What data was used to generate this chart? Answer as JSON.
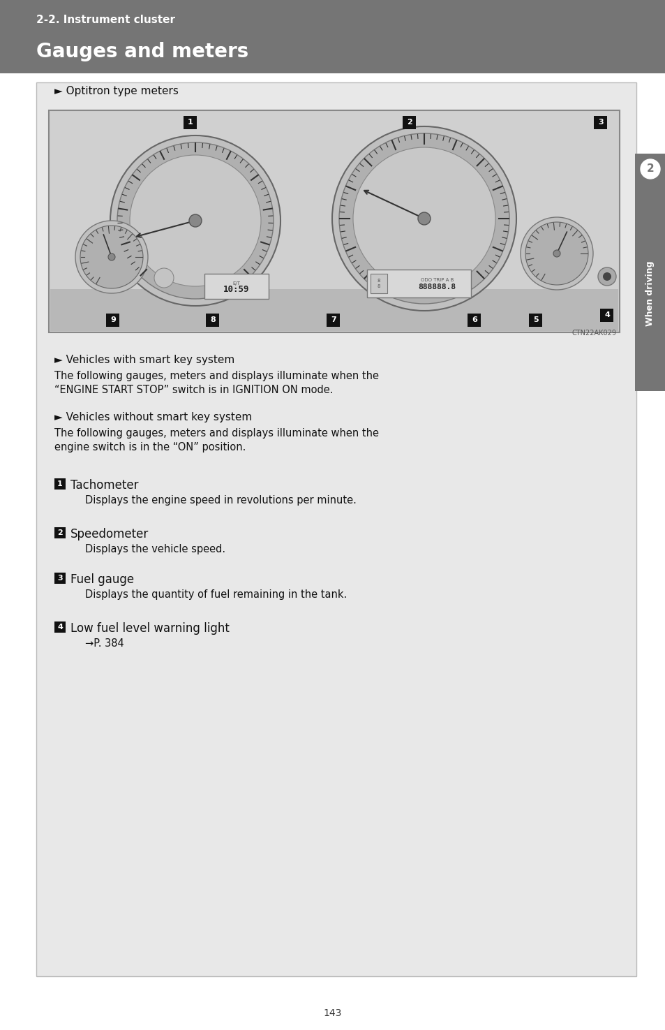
{
  "page_bg": "#ffffff",
  "header_bg": "#757575",
  "header_subtitle": "2-2. Instrument cluster",
  "header_title": "Gauges and meters",
  "header_subtitle_color": "#ffffff",
  "header_title_color": "#ffffff",
  "header_subtitle_size": 11,
  "header_title_size": 20,
  "content_bg": "#e8e8e8",
  "optitron_label": "► Optitron type meters",
  "smart_key_title": "► Vehicles with smart key system",
  "smart_key_text1": "The following gauges, meters and displays illuminate when the",
  "smart_key_text2": "“ENGINE START STOP” switch is in IGNITION ON mode.",
  "no_smart_key_title": "► Vehicles without smart key system",
  "no_smart_key_text1": "The following gauges, meters and displays illuminate when the",
  "no_smart_key_text2": "engine switch is in the “ON” position.",
  "items": [
    {
      "num": "1",
      "title": "Tachometer",
      "desc": "Displays the engine speed in revolutions per minute."
    },
    {
      "num": "2",
      "title": "Speedometer",
      "desc": "Displays the vehicle speed."
    },
    {
      "num": "3",
      "title": "Fuel gauge",
      "desc": "Displays the quantity of fuel remaining in the tank."
    },
    {
      "num": "4",
      "title": "Low fuel level warning light",
      "desc": "→P. 384"
    }
  ],
  "right_tab_text": "When driving",
  "right_tab_num": "2",
  "page_num": "143",
  "ctn_label": "CTN22AK029"
}
